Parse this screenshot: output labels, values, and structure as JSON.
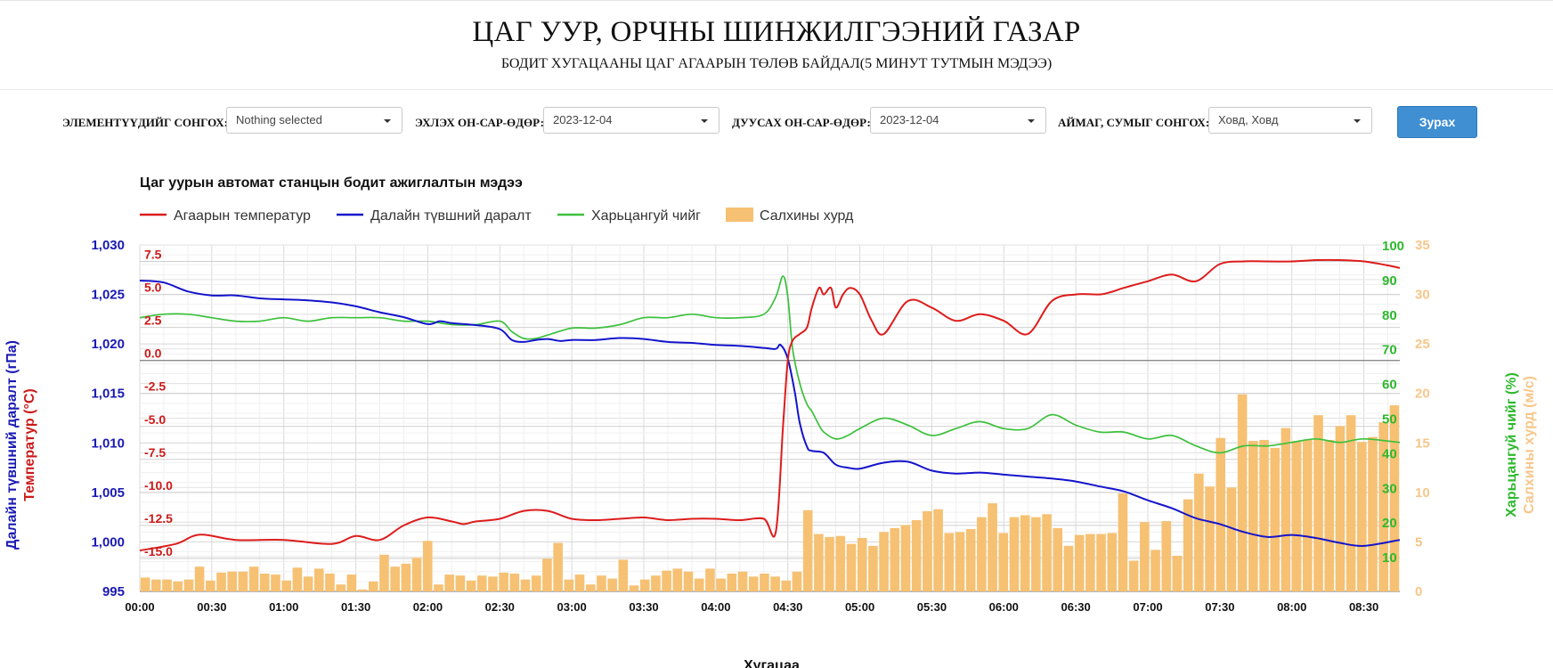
{
  "header": {
    "title": "ЦАГ УУР, ОРЧНЫ ШИНЖИЛГЭЭНИЙ ГАЗАР",
    "subtitle": "БОДИТ ХУГАЦААНЫ ЦАГ АГААРЫН ТӨЛӨВ БАЙДАЛ(5 МИНУТ ТУТМЫН МЭДЭЭ)"
  },
  "filters": {
    "elements_label": "ЭЛЕМЕНТҮҮДИЙГ СОНГОХ:",
    "elements_value": "Nothing selected",
    "start_label": "ЭХЛЭХ ОН-САР-ӨДӨР:",
    "start_value": "2023-12-04",
    "end_label": "ДУУСАХ ОН-САР-ӨДӨР:",
    "end_value": "2023-12-04",
    "station_label": "АЙМАГ, СУМЫГ СОНГОХ:",
    "station_value": "Ховд, Ховд",
    "submit_label": "Зурах"
  },
  "colors": {
    "temperature": "#dd1c1c",
    "pressure": "#1414cc",
    "humidity": "#3cc03c",
    "wind": "#f6c173",
    "wind_axis": "#f7c68a"
  },
  "chart_data": {
    "type": "line",
    "title": "Цаг уурын автомат станцын бодит ажиглалтын мэдээ",
    "xlabel": "Хугацаа",
    "legend_position": "top-left",
    "grid": true,
    "x_ticks": [
      "00:00",
      "00:30",
      "01:00",
      "01:30",
      "02:00",
      "02:30",
      "03:00",
      "03:30",
      "04:00",
      "04:30",
      "05:00",
      "05:30",
      "06:00",
      "06:30",
      "07:00",
      "07:30",
      "08:00",
      "08:30"
    ],
    "x_range_minutes": [
      0,
      525
    ],
    "axes": {
      "pressure": {
        "label": "Далайн түвшний даралт (гПа)",
        "range": [
          995,
          1030
        ],
        "ticks": [
          "995",
          "1,000",
          "1,005",
          "1,010",
          "1,015",
          "1,020",
          "1,025",
          "1,030"
        ],
        "tick_values": [
          995,
          1000,
          1005,
          1010,
          1015,
          1020,
          1025,
          1030
        ]
      },
      "temperature": {
        "label": "Температур (°C)",
        "range": [
          -17.5,
          8.75
        ],
        "ticks": [
          "7.5",
          "5.0",
          "2.5",
          "0.0",
          "-2.5",
          "-5.0",
          "-7.5",
          "-10.0",
          "-12.5",
          "-15.0"
        ],
        "tick_values": [
          7.5,
          5,
          2.5,
          0,
          -2.5,
          -5,
          -7.5,
          -10,
          -12.5,
          -15
        ]
      },
      "humidity": {
        "label": "Харьцангуй чийг (%)",
        "range": [
          0,
          100
        ],
        "ticks": [
          "100",
          "90",
          "80",
          "70",
          "60",
          "50",
          "40",
          "30",
          "20",
          "10"
        ],
        "tick_values": [
          100,
          90,
          80,
          70,
          60,
          50,
          40,
          30,
          20,
          10
        ]
      },
      "wind": {
        "label": "Салхины хурд (м/с)",
        "range": [
          0,
          35
        ],
        "ticks": [
          "35",
          "30",
          "25",
          "20",
          "15",
          "10",
          "5",
          "0"
        ],
        "tick_values": [
          35,
          30,
          25,
          20,
          15,
          10,
          5,
          0
        ]
      }
    },
    "series": [
      {
        "name": "Агаарын температур",
        "type": "line",
        "axis": "temperature",
        "t": [
          0,
          15,
          25,
          40,
          60,
          80,
          90,
          100,
          110,
          120,
          130,
          135,
          140,
          150,
          160,
          170,
          180,
          190,
          200,
          210,
          220,
          230,
          240,
          250,
          260,
          265,
          268,
          270,
          272,
          275,
          278,
          280,
          283,
          285,
          288,
          290,
          293,
          296,
          300,
          305,
          310,
          320,
          330,
          340,
          350,
          360,
          370,
          380,
          390,
          400,
          405,
          410,
          420,
          430,
          440,
          450,
          460,
          470,
          480,
          490,
          500,
          510,
          520,
          525
        ],
        "values": [
          -14.4,
          -13.9,
          -13.2,
          -13.6,
          -13.6,
          -13.9,
          -13.3,
          -13.6,
          -12.5,
          -11.9,
          -12.2,
          -12.4,
          -12.2,
          -12.0,
          -11.4,
          -11.4,
          -12.0,
          -12.1,
          -12.0,
          -11.9,
          -12.1,
          -12.0,
          -12.0,
          -12.1,
          -12.0,
          -13.0,
          -5.0,
          0.0,
          1.5,
          2.0,
          2.5,
          4.0,
          5.5,
          5.0,
          5.5,
          4.0,
          5.0,
          5.5,
          5.0,
          3.0,
          2.0,
          4.5,
          4.0,
          3.0,
          3.5,
          3.0,
          2.0,
          4.5,
          5.0,
          5.0,
          5.2,
          5.5,
          6.0,
          6.5,
          6.0,
          7.3,
          7.5,
          7.5,
          7.5,
          7.6,
          7.6,
          7.5,
          7.2,
          7.0
        ]
      },
      {
        "name": "Далайн түвшний даралт",
        "type": "line",
        "axis": "pressure",
        "t": [
          0,
          10,
          20,
          30,
          40,
          50,
          60,
          70,
          80,
          90,
          100,
          110,
          120,
          125,
          130,
          140,
          150,
          155,
          160,
          165,
          170,
          175,
          180,
          190,
          200,
          210,
          220,
          230,
          240,
          250,
          260,
          265,
          267,
          270,
          273,
          275,
          278,
          280,
          285,
          290,
          295,
          300,
          310,
          320,
          330,
          340,
          350,
          360,
          370,
          380,
          390,
          400,
          410,
          420,
          430,
          440,
          450,
          460,
          470,
          480,
          490,
          500,
          510,
          525
        ],
        "values": [
          1026.4,
          1026.2,
          1025.3,
          1024.9,
          1024.9,
          1024.6,
          1024.5,
          1024.4,
          1024.2,
          1023.8,
          1023.2,
          1022.7,
          1022.0,
          1022.3,
          1022.1,
          1021.9,
          1021.5,
          1020.4,
          1020.2,
          1020.4,
          1020.5,
          1020.3,
          1020.4,
          1020.4,
          1020.6,
          1020.5,
          1020.2,
          1020.1,
          1019.9,
          1019.8,
          1019.6,
          1019.5,
          1019.9,
          1018.5,
          1015.0,
          1012.0,
          1009.6,
          1009.2,
          1009.0,
          1007.8,
          1007.5,
          1007.4,
          1008.0,
          1008.1,
          1007.2,
          1006.9,
          1007.0,
          1006.8,
          1006.6,
          1006.4,
          1006.1,
          1005.6,
          1005.1,
          1004.2,
          1003.4,
          1002.4,
          1001.8,
          1001.0,
          1000.5,
          1000.7,
          1000.4,
          999.9,
          999.6,
          1000.2
        ]
      },
      {
        "name": "Харьцангуй чийг",
        "type": "line",
        "axis": "humidity",
        "t": [
          0,
          10,
          20,
          30,
          40,
          50,
          60,
          70,
          80,
          90,
          100,
          110,
          120,
          130,
          140,
          150,
          155,
          160,
          165,
          170,
          180,
          190,
          200,
          210,
          220,
          230,
          240,
          250,
          260,
          265,
          268,
          270,
          272,
          275,
          278,
          280,
          283,
          285,
          290,
          295,
          300,
          310,
          320,
          330,
          340,
          350,
          360,
          370,
          380,
          390,
          400,
          410,
          420,
          430,
          440,
          450,
          460,
          470,
          480,
          490,
          500,
          510,
          525
        ],
        "values": [
          79,
          80,
          80,
          79,
          78,
          78,
          79,
          78,
          79,
          79,
          79,
          78,
          78,
          77,
          77,
          78,
          75,
          73,
          73,
          74,
          76,
          76,
          77,
          79,
          79,
          80,
          79,
          79,
          80,
          85,
          91,
          85,
          70,
          60,
          54,
          52,
          48,
          46,
          44,
          45,
          47,
          50,
          48,
          45,
          47,
          49,
          47,
          47,
          51,
          48,
          46,
          46,
          44,
          45,
          42,
          40,
          42,
          42,
          43,
          44,
          43,
          44,
          43
        ]
      },
      {
        "name": "Салхины хурд",
        "type": "bar",
        "axis": "wind",
        "values": [
          1.4,
          1.2,
          1.2,
          1.0,
          1.2,
          2.5,
          1.1,
          1.9,
          2.0,
          2.0,
          2.5,
          1.8,
          1.7,
          1.1,
          2.4,
          1.5,
          2.3,
          1.8,
          0.7,
          1.7,
          0.2,
          1.0,
          3.7,
          2.5,
          2.8,
          3.4,
          5.1,
          0.7,
          1.7,
          1.6,
          1.1,
          1.6,
          1.5,
          1.9,
          1.8,
          1.2,
          1.6,
          3.3,
          4.9,
          1.2,
          1.7,
          0.7,
          1.6,
          1.3,
          3.2,
          0.6,
          1.2,
          1.6,
          2.1,
          2.3,
          2.0,
          1.3,
          2.3,
          1.3,
          1.8,
          2.0,
          1.5,
          1.8,
          1.5,
          1.1,
          2.0,
          8.2,
          5.8,
          5.5,
          5.6,
          4.8,
          5.4,
          4.6,
          6.0,
          6.4,
          6.7,
          7.2,
          8.1,
          8.3,
          5.9,
          6.0,
          6.3,
          7.5,
          8.9,
          5.9,
          7.5,
          7.7,
          7.5,
          7.8,
          6.4,
          4.6,
          5.7,
          5.8,
          5.8,
          5.9,
          9.9,
          3.1,
          7.0,
          4.2,
          7.1,
          3.6,
          9.3,
          11.9,
          10.6,
          15.5,
          10.5,
          19.9,
          15.2,
          15.3,
          14.5,
          16.5,
          15.2,
          15.3,
          17.8,
          15.3,
          16.7,
          17.8,
          15.1,
          15.6,
          17.1,
          18.8
        ]
      }
    ]
  }
}
